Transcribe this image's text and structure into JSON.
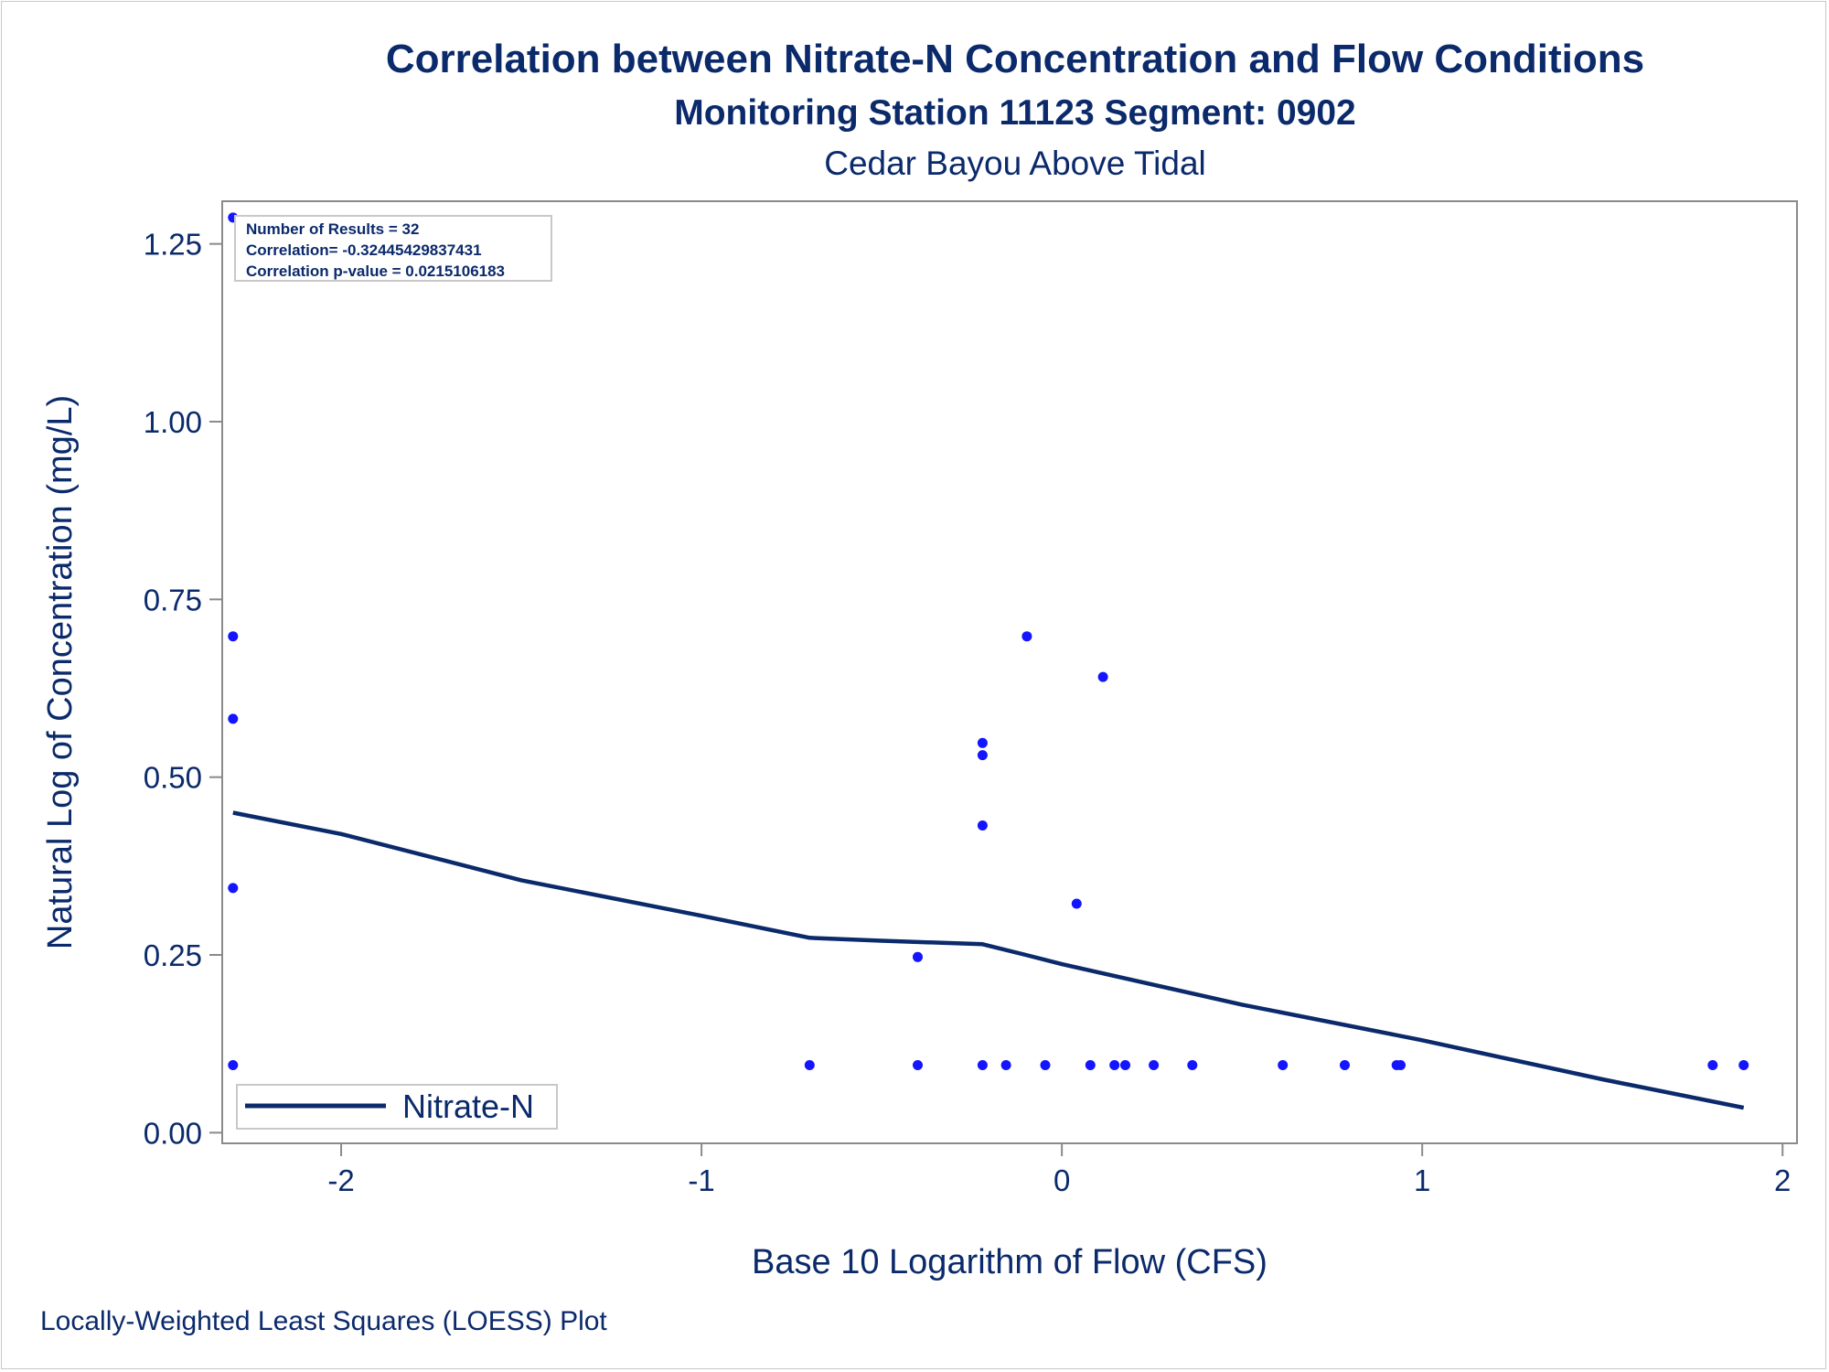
{
  "chart_data": {
    "type": "scatter",
    "title": "Correlation between Nitrate-N Concentration and Flow Conditions",
    "subtitle": "Monitoring Station 11123 Segment: 0902",
    "subtitle2": "Cedar Bayou Above Tidal",
    "xlabel": "Base 10 Logarithm of Flow (CFS)",
    "ylabel": "Natural Log of Concentration (mg/L)",
    "footnote": "Locally-Weighted Least Squares (LOESS) Plot",
    "xlim": [
      -2.33,
      2.04
    ],
    "ylim": [
      -0.015,
      1.31
    ],
    "x_ticks": [
      {
        "value": -2,
        "label": "-2"
      },
      {
        "value": -1,
        "label": "-1"
      },
      {
        "value": 0,
        "label": "0"
      },
      {
        "value": 1,
        "label": "1"
      },
      {
        "value": 2,
        "label": "2"
      }
    ],
    "y_ticks": [
      {
        "value": 0.0,
        "label": "0.00"
      },
      {
        "value": 0.25,
        "label": "0.25"
      },
      {
        "value": 0.5,
        "label": "0.50"
      },
      {
        "value": 0.75,
        "label": "0.75"
      },
      {
        "value": 1.0,
        "label": "1.00"
      },
      {
        "value": 1.25,
        "label": "1.25"
      }
    ],
    "stats": [
      "Number of Results = 32",
      "Correlation= -0.32445429837431",
      "Correlation p-value = 0.0215106183"
    ],
    "legend": {
      "label": "Nitrate-N",
      "placement": "bottom-left"
    },
    "point_color": "#1414ff",
    "line_color": "#0b2a6b",
    "points": [
      {
        "x": -2.3,
        "y": 1.287
      },
      {
        "x": -2.3,
        "y": 0.698
      },
      {
        "x": -2.3,
        "y": 0.582
      },
      {
        "x": -2.3,
        "y": 0.344
      },
      {
        "x": -2.3,
        "y": 0.095
      },
      {
        "x": -0.7,
        "y": 0.095
      },
      {
        "x": -0.4,
        "y": 0.247
      },
      {
        "x": -0.4,
        "y": 0.095
      },
      {
        "x": -0.22,
        "y": 0.548
      },
      {
        "x": -0.22,
        "y": 0.531
      },
      {
        "x": -0.22,
        "y": 0.432
      },
      {
        "x": -0.22,
        "y": 0.095
      },
      {
        "x": -0.155,
        "y": 0.095
      },
      {
        "x": -0.097,
        "y": 0.698
      },
      {
        "x": -0.046,
        "y": 0.095
      },
      {
        "x": 0.041,
        "y": 0.322
      },
      {
        "x": 0.079,
        "y": 0.095
      },
      {
        "x": 0.114,
        "y": 0.641
      },
      {
        "x": 0.146,
        "y": 0.095
      },
      {
        "x": 0.176,
        "y": 0.095
      },
      {
        "x": 0.255,
        "y": 0.095
      },
      {
        "x": 0.362,
        "y": 0.095
      },
      {
        "x": 0.613,
        "y": 0.095
      },
      {
        "x": 0.785,
        "y": 0.095
      },
      {
        "x": 0.929,
        "y": 0.095
      },
      {
        "x": 0.94,
        "y": 0.095
      },
      {
        "x": 1.806,
        "y": 0.095
      },
      {
        "x": 1.892,
        "y": 0.095
      }
    ],
    "series": [
      {
        "name": "Nitrate-N",
        "x": [
          -2.3,
          -2.0,
          -1.5,
          -1.0,
          -0.7,
          -0.5,
          -0.22,
          -0.1,
          0.0,
          0.5,
          1.0,
          1.5,
          1.892
        ],
        "values": [
          0.45,
          0.42,
          0.355,
          0.305,
          0.274,
          0.27,
          0.265,
          0.25,
          0.237,
          0.18,
          0.13,
          0.075,
          0.035
        ]
      }
    ]
  }
}
